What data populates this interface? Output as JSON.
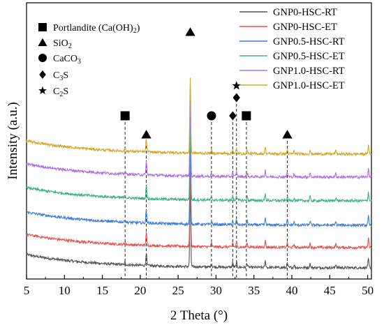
{
  "chart_data": {
    "type": "line",
    "xlabel": "2 Theta (°)",
    "ylabel": "Intensity (a.u.)",
    "xlim": [
      5,
      50.5
    ],
    "xticks": [
      5,
      10,
      15,
      20,
      25,
      30,
      35,
      40,
      45,
      50
    ],
    "yticks_shown": false,
    "grid": false,
    "legend_position": "top-right",
    "series": [
      {
        "name": "GNP0-HSC-RT",
        "color": "#555555",
        "offset": 0
      },
      {
        "name": "GNP0-HSC-ET",
        "color": "#e05555",
        "offset": 1
      },
      {
        "name": "GNP0.5-HSC-RT",
        "color": "#3f7fd6",
        "offset": 2
      },
      {
        "name": "GNP0.5-HSC-ET",
        "color": "#3fb08a",
        "offset": 3
      },
      {
        "name": "GNP1.0-HSC-RT",
        "color": "#b070e0",
        "offset": 4
      },
      {
        "name": "GNP1.0-HSC-ET",
        "color": "#d4a830",
        "offset": 5
      }
    ],
    "peaks": [
      {
        "x": 18.0,
        "h": 0.1
      },
      {
        "x": 20.8,
        "h": 0.45
      },
      {
        "x": 26.6,
        "h": 2.6
      },
      {
        "x": 29.4,
        "h": 0.12
      },
      {
        "x": 32.2,
        "h": 0.15
      },
      {
        "x": 32.7,
        "h": 0.17
      },
      {
        "x": 34.1,
        "h": 0.14
      },
      {
        "x": 36.5,
        "h": 0.22
      },
      {
        "x": 39.4,
        "h": 0.15
      },
      {
        "x": 40.3,
        "h": 0.1
      },
      {
        "x": 42.4,
        "h": 0.14
      },
      {
        "x": 45.8,
        "h": 0.12
      },
      {
        "x": 50.1,
        "h": 0.3
      }
    ],
    "phase_legend": [
      {
        "symbol": "square",
        "label_main": "Portlandite (Ca(OH)",
        "label_sub": "2",
        "label_tail": ")"
      },
      {
        "symbol": "triangle",
        "label_main": "SiO",
        "label_sub": "2",
        "label_tail": ""
      },
      {
        "symbol": "circle",
        "label_main": "CaCO",
        "label_sub": "3",
        "label_tail": ""
      },
      {
        "symbol": "diamond",
        "label_main": "C",
        "label_sub": "3",
        "label_tail": "S"
      },
      {
        "symbol": "star",
        "label_main": "C",
        "label_sub": "2",
        "label_tail": "S"
      }
    ],
    "annotations": [
      {
        "symbol": "square",
        "x": 18.0
      },
      {
        "symbol": "triangle",
        "x": 20.8
      },
      {
        "symbol": "triangle",
        "x": 26.6
      },
      {
        "symbol": "circle",
        "x": 29.4
      },
      {
        "symbol": "diamond",
        "x": 32.2
      },
      {
        "symbol": "diamond",
        "x": 32.7
      },
      {
        "symbol": "star",
        "x": 32.7
      },
      {
        "symbol": "square",
        "x": 34.0
      },
      {
        "symbol": "triangle",
        "x": 39.4
      }
    ]
  }
}
